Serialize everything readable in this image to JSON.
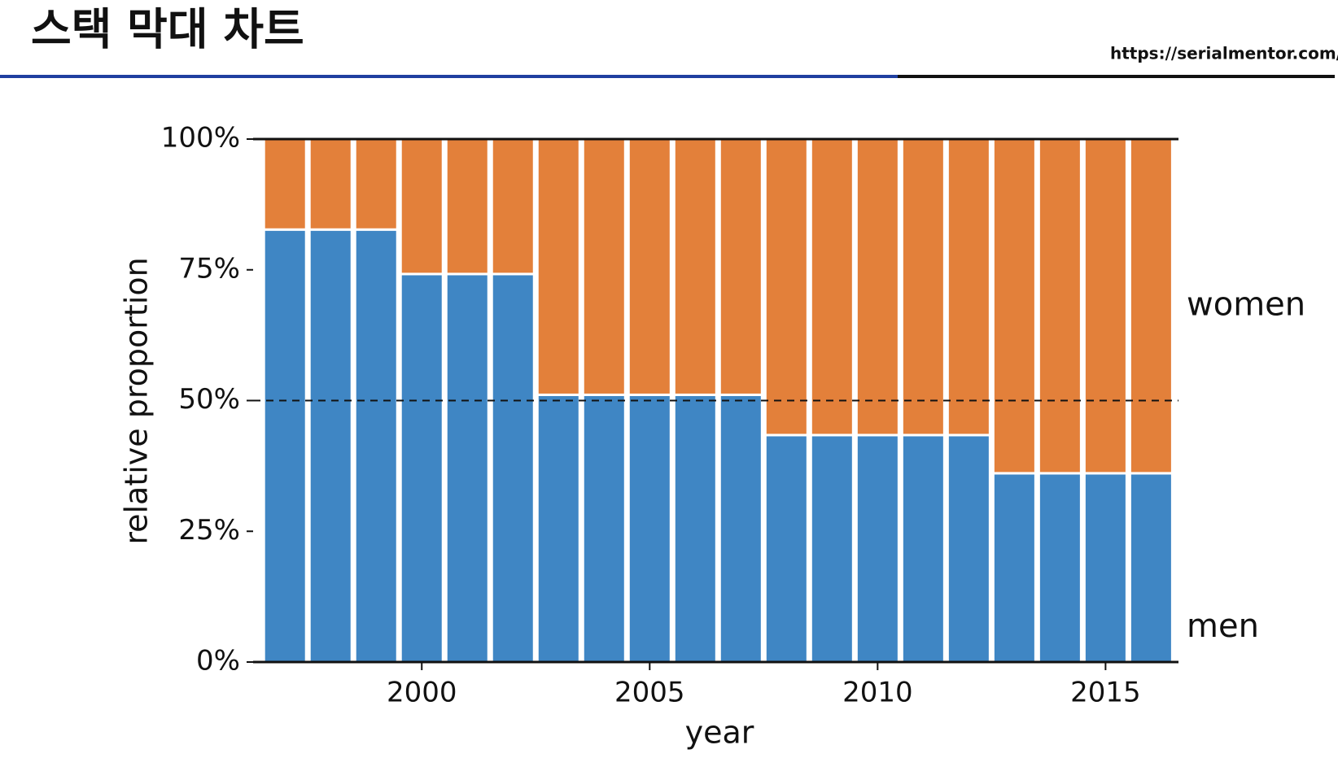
{
  "header": {
    "title": "스택 막대 차트",
    "url": "https://serialmentor.com/"
  },
  "chart_data": {
    "type": "stacked-bar",
    "x": [
      1997,
      1998,
      1999,
      2000,
      2001,
      2002,
      2003,
      2004,
      2005,
      2006,
      2007,
      2008,
      2009,
      2010,
      2011,
      2012,
      2013,
      2014,
      2015,
      2016
    ],
    "series": [
      {
        "name": "men",
        "color": "#3f86c4",
        "values": [
          82.7,
          82.7,
          82.7,
          74.2,
          74.2,
          74.2,
          51.1,
          51.1,
          51.1,
          51.1,
          51.1,
          43.4,
          43.4,
          43.4,
          43.4,
          43.4,
          36.1,
          36.1,
          36.1,
          36.1
        ]
      },
      {
        "name": "women",
        "color": "#e3803a",
        "values": [
          17.3,
          17.3,
          17.3,
          25.8,
          25.8,
          25.8,
          48.9,
          48.9,
          48.9,
          48.9,
          48.9,
          56.6,
          56.6,
          56.6,
          56.6,
          56.6,
          63.9,
          63.9,
          63.9,
          63.9
        ]
      }
    ],
    "xlabel": "year",
    "ylabel": "relative proportion",
    "xlim": [
      1996.3,
      2016.6
    ],
    "xticks": [
      2000,
      2005,
      2010,
      2015
    ],
    "ylim": [
      0,
      100
    ],
    "yticks": [
      {
        "value": 0,
        "label": "0%"
      },
      {
        "value": 25,
        "label": "25%"
      },
      {
        "value": 50,
        "label": "50%"
      },
      {
        "value": 75,
        "label": "75%"
      },
      {
        "value": 100,
        "label": "100%"
      }
    ],
    "reference_line": 50
  }
}
